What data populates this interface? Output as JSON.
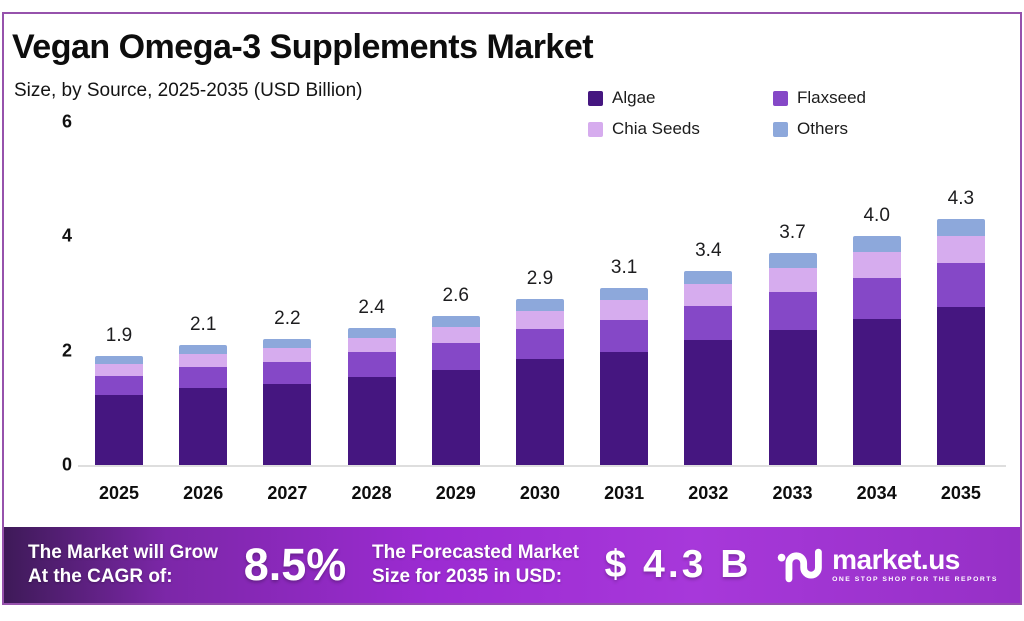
{
  "chart_data": {
    "type": "bar",
    "stacked": true,
    "title": "Vegan Omega-3 Supplements Market",
    "subtitle": "Size, by Source, 2025-2035 (USD Billion)",
    "categories": [
      "2025",
      "2026",
      "2027",
      "2028",
      "2029",
      "2030",
      "2031",
      "2032",
      "2033",
      "2034",
      "2035"
    ],
    "totals": [
      1.9,
      2.1,
      2.2,
      2.4,
      2.6,
      2.9,
      3.1,
      3.4,
      3.7,
      4.0,
      4.3
    ],
    "series": [
      {
        "name": "Algae",
        "color": "#451680",
        "values": [
          1.22,
          1.34,
          1.41,
          1.54,
          1.66,
          1.86,
          1.98,
          2.18,
          2.37,
          2.56,
          2.75
        ]
      },
      {
        "name": "Flaxseed",
        "color": "#8548C7",
        "values": [
          0.34,
          0.38,
          0.4,
          0.43,
          0.47,
          0.52,
          0.56,
          0.61,
          0.67,
          0.72,
          0.77
        ]
      },
      {
        "name": "Chia Seeds",
        "color": "#D6ACEE",
        "values": [
          0.21,
          0.23,
          0.24,
          0.26,
          0.29,
          0.32,
          0.34,
          0.37,
          0.41,
          0.44,
          0.47
        ]
      },
      {
        "name": "Others",
        "color": "#8DA8DB",
        "values": [
          0.13,
          0.15,
          0.15,
          0.17,
          0.18,
          0.2,
          0.22,
          0.24,
          0.26,
          0.28,
          0.3
        ]
      }
    ],
    "ylim": [
      0,
      6
    ],
    "yticks": [
      0,
      2,
      4,
      6
    ],
    "grid": false,
    "legend_position": "top-right",
    "value_label_format": "one-decimal totals above each bar"
  },
  "banner": {
    "cagr_line1": "The Market will Grow",
    "cagr_line2": "At the CAGR of:",
    "cagr_value": "8.5%",
    "forecast_line1": "The Forecasted Market",
    "forecast_line2": "Size for 2035 in USD:",
    "forecast_value": "$ 4.3 B",
    "logo_text": "market.us",
    "logo_tagline": "ONE STOP SHOP FOR THE REPORTS"
  },
  "theme": {
    "frame_border": "#9652AC",
    "banner_gradient": [
      "#3E1A58",
      "#9C2BD2",
      "#9630C6"
    ],
    "banner_text": "#FFFFFF",
    "axis_text": "#111111",
    "background": "#FFFFFF"
  }
}
